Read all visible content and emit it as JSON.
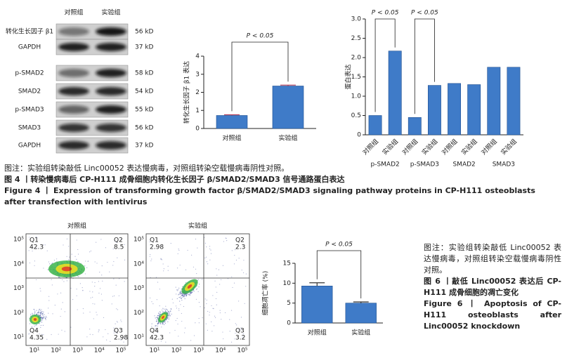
{
  "blot": {
    "groups": [
      "对照组",
      "实验组"
    ],
    "rows": [
      {
        "label": "转化生长因子 β1",
        "size": "56 kD"
      },
      {
        "label": "GAPDH",
        "size": "37 kD"
      },
      {
        "label": "p-SMAD2",
        "size": "58 kD"
      },
      {
        "label": "SMAD2",
        "size": "54 kD"
      },
      {
        "label": "p-SMAD3",
        "size": "55 kD"
      },
      {
        "label": "SMAD3",
        "size": "56 kD"
      },
      {
        "label": "GAPDH",
        "size": "37 kD"
      }
    ]
  },
  "chart_data": [
    {
      "type": "bar",
      "y_label": "转化生长因子 β1 表达",
      "categories": [
        "对照组",
        "实验组"
      ],
      "values": [
        0.72,
        2.35
      ],
      "errors": [
        0.04,
        0.05
      ],
      "color": "#3f7bc8",
      "error_color": "#b03a58",
      "ylim": [
        0,
        4
      ],
      "yticks": [
        0,
        1,
        2,
        3,
        4
      ],
      "annotations": [
        "P < 0.05"
      ]
    },
    {
      "type": "bar",
      "y_label": "蛋白表达",
      "categories": [
        "对照组",
        "实验组",
        "对照组",
        "实验组",
        "对照组",
        "实验组",
        "对照组",
        "实验组"
      ],
      "groups": [
        "p-SMAD2",
        "p-SMAD3",
        "SMAD2",
        "SMAD3"
      ],
      "values": [
        0.5,
        2.17,
        0.45,
        1.28,
        1.33,
        1.3,
        1.75,
        1.75
      ],
      "color": "#3f7bc8",
      "ylim": [
        0,
        3
      ],
      "yticks": [
        0,
        0.5,
        {
          "value": 1,
          "label": "1.0"
        },
        1.5,
        {
          "value": 2,
          "label": "2.0"
        },
        2.5,
        {
          "value": 3,
          "label": "3.0"
        }
      ],
      "annotations": [
        "P < 0.05",
        "P < 0.05"
      ]
    },
    {
      "type": "bar",
      "y_label": "细胞凋亡率 (%)",
      "categories": [
        "对照组",
        "实验组"
      ],
      "values": [
        9.3,
        5.0
      ],
      "errors": [
        0.8,
        0.3
      ],
      "color": "#3f7bc8",
      "error_color": "#333333",
      "ylim": [
        0,
        15
      ],
      "yticks": [
        0,
        5,
        10,
        15
      ],
      "annotations": [
        "P < 0.05"
      ]
    }
  ],
  "figure4": {
    "note": "图注：实验组转染敲低 Linc00052 表达慢病毒，对照组转染空载慢病毒阴性对照。",
    "title_cn": "图 4 丨转染慢病毒后 CP-H111 成骨细胞内转化生长因子 β/SMAD2/SMAD3 信号通路蛋白表达",
    "title_en": "Figure 4 丨 Expression of transforming growth factor β/SMAD2/SMAD3 signaling pathway proteins in CP-H111 osteoblasts after transfection with lentivirus"
  },
  "flow": {
    "axis_ticks": [
      "10⁵",
      "10⁴",
      "10³",
      "10²",
      "10¹"
    ],
    "plots": [
      {
        "title": "对照组",
        "quadrants": [
          {
            "name": "Q1",
            "value": 42.3
          },
          {
            "name": "Q2",
            "value": 8.5
          },
          {
            "name": "Q4",
            "value": 4.35
          },
          {
            "name": "Q3",
            "value": 2.98
          }
        ]
      },
      {
        "title": "实验组",
        "quadrants": [
          {
            "name": "Q1",
            "value": 2.98
          },
          {
            "name": "Q2",
            "value": 2.3
          },
          {
            "name": "Q4",
            "value": 42.3
          },
          {
            "name": "Q3",
            "value": 3.2
          }
        ]
      }
    ]
  },
  "figure6": {
    "note": "图注：实验组转染敲低 Linc00052 表达慢病毒，对照组转染空载慢病毒阴性对照。",
    "title_cn": "图 6 丨敲低 Linc00052 表达后 CP-H111 成骨细胞的凋亡变化",
    "title_en": "Figure 6 丨 Apoptosis of CP-H111 osteoblasts after Linc00052 knockdown"
  }
}
